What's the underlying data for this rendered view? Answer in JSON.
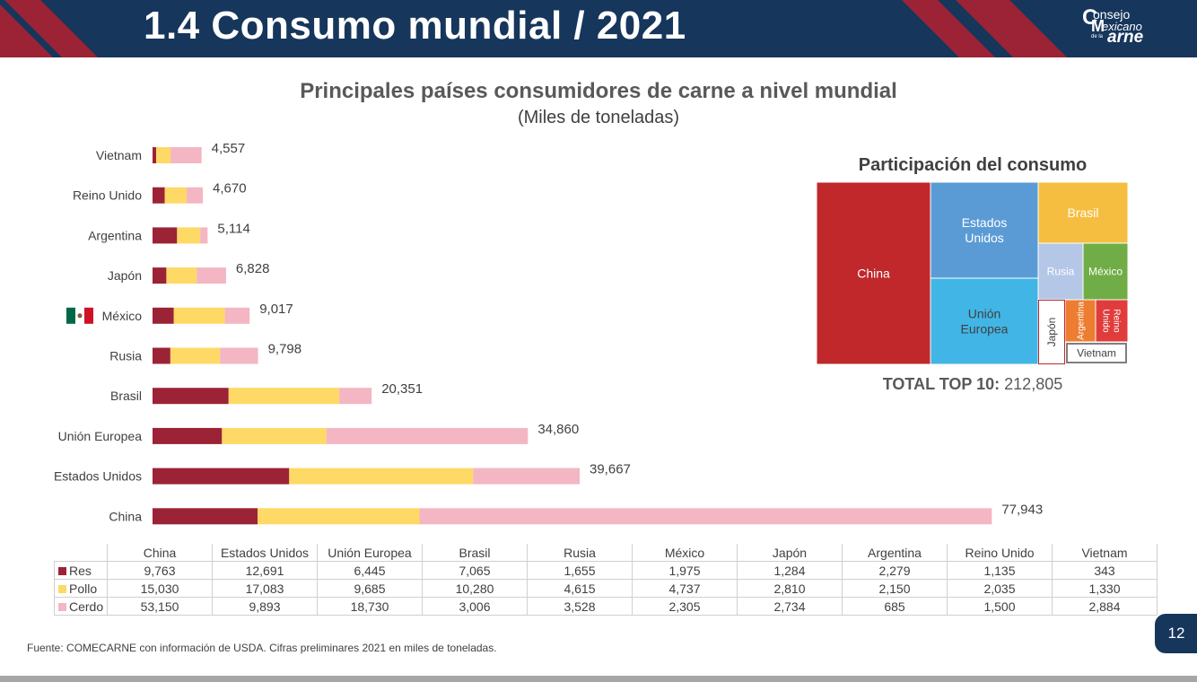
{
  "slide": {
    "title": "1.4 Consumo mundial / 2021",
    "page_number": "12",
    "source": "Fuente: COMECARNE con información de USDA. Cifras preliminares 2021 en miles de toneladas.",
    "logo_lines": [
      "onsejo",
      "exicano",
      "de la",
      "arne"
    ],
    "logo_initials": [
      "C",
      "M"
    ]
  },
  "colors": {
    "header_bg": "#16365c",
    "accent_red": "#9b2335",
    "res": "#9b2335",
    "pollo": "#ffd966",
    "cerdo": "#f4b6c2"
  },
  "chart_data": [
    {
      "type": "bar",
      "orientation": "horizontal",
      "stacked": true,
      "title": "Principales países consumidores de carne a nivel mundial",
      "subtitle": "(Miles de toneladas)",
      "categories": [
        "Vietnam",
        "Reino Unido",
        "Argentina",
        "Japón",
        "México",
        "Rusia",
        "Brasil",
        "Unión Europea",
        "Estados Unidos",
        "China"
      ],
      "series": [
        {
          "name": "Res",
          "color": "#9b2335",
          "values": [
            343,
            1135,
            2279,
            1284,
            1975,
            1655,
            7065,
            6445,
            12691,
            9763
          ]
        },
        {
          "name": "Pollo",
          "color": "#ffd966",
          "values": [
            1330,
            2035,
            2150,
            2810,
            4737,
            4615,
            10280,
            9685,
            17083,
            15030
          ]
        },
        {
          "name": "Cerdo",
          "color": "#f4b6c2",
          "values": [
            2884,
            1500,
            685,
            2734,
            2305,
            3528,
            3006,
            18730,
            9893,
            53150
          ]
        }
      ],
      "total_labels": [
        "4,557",
        "4,670",
        "5,114",
        "6,828",
        "9,017",
        "9,798",
        "20,351",
        "34,860",
        "39,667",
        "77,943"
      ],
      "xlim": [
        0,
        80000
      ],
      "grid": false,
      "flag_category": "México",
      "flag_icon": "mexico-flag-icon"
    },
    {
      "type": "treemap",
      "title": "Participación del consumo",
      "items": [
        {
          "label": "China",
          "value": 77943,
          "color": "#c0282b"
        },
        {
          "label": "Estados Unidos",
          "value": 39667,
          "color": "#5b9bd5"
        },
        {
          "label": "Unión Europea",
          "value": 34860,
          "color": "#41b6e6"
        },
        {
          "label": "Brasil",
          "value": 20351,
          "color": "#f6be41"
        },
        {
          "label": "Rusia",
          "value": 9798,
          "color": "#b4c7e7"
        },
        {
          "label": "México",
          "value": 9017,
          "color": "#70ad47"
        },
        {
          "label": "Japón",
          "value": 6828,
          "color": "#ffffff"
        },
        {
          "label": "Argentina",
          "value": 5114,
          "color": "#ed7d31"
        },
        {
          "label": "Reino Unido",
          "value": 4670,
          "color": "#e03c3c"
        },
        {
          "label": "Vietnam",
          "value": 4557,
          "color": "#ffffff"
        }
      ],
      "total_label": "TOTAL TOP 10:",
      "total_value": "212,805"
    }
  ],
  "table": {
    "columns": [
      "China",
      "Estados Unidos",
      "Unión Europea",
      "Brasil",
      "Rusia",
      "México",
      "Japón",
      "Argentina",
      "Reino Unido",
      "Vietnam"
    ],
    "rows": [
      {
        "label": "Res",
        "color": "#9b2335",
        "values": [
          "9,763",
          "12,691",
          "6,445",
          "7,065",
          "1,655",
          "1,975",
          "1,284",
          "2,279",
          "1,135",
          "343"
        ]
      },
      {
        "label": "Pollo",
        "color": "#ffd966",
        "values": [
          "15,030",
          "17,083",
          "9,685",
          "10,280",
          "4,615",
          "4,737",
          "2,810",
          "2,150",
          "2,035",
          "1,330"
        ]
      },
      {
        "label": "Cerdo",
        "color": "#f4b6c2",
        "values": [
          "53,150",
          "9,893",
          "18,730",
          "3,006",
          "3,528",
          "2,305",
          "2,734",
          "685",
          "1,500",
          "2,884"
        ]
      }
    ]
  }
}
